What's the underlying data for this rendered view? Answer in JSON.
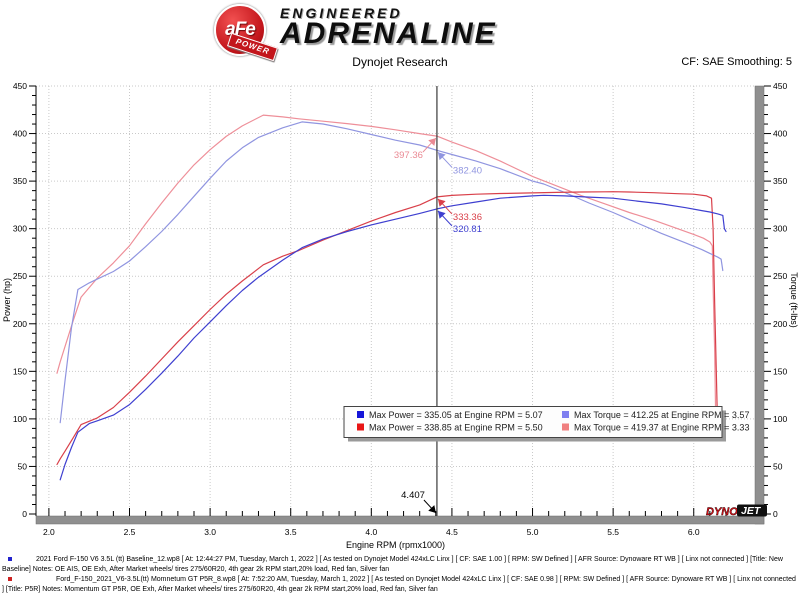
{
  "header": {
    "badge_text": "aFe",
    "badge_sub": "POWER",
    "brand_top": "ENGINEERED",
    "brand_bottom": "ADRENALINE",
    "title": "Dynojet Research",
    "smoothing": "CF: SAE Smoothing: 5"
  },
  "watermark": {
    "dyno": "DYNO",
    "jet": "JET"
  },
  "chart_data": {
    "type": "line",
    "title": "",
    "xlabel": "Engine RPM (rpmx1000)",
    "ylabel_left": "Power (hp)",
    "ylabel_right": "Torque (ft-lbs)",
    "xlim": [
      1.92,
      6.38
    ],
    "ylim": [
      0,
      450
    ],
    "x_ticks": [
      2.0,
      2.5,
      3.0,
      3.5,
      4.0,
      4.5,
      5.0,
      5.5,
      6.0
    ],
    "x_minor_step": 0.1,
    "y_ticks": [
      0,
      50,
      100,
      150,
      200,
      250,
      300,
      350,
      400,
      450
    ],
    "y_minor_step": 10,
    "grid": "dotted at major ticks",
    "legend_position": "bottom center inside",
    "cursor_rpm": 4.407,
    "cursor_label": "4.407",
    "series": [
      {
        "name": "torque_afe_p5r",
        "color": "#ee8f99",
        "axis": "torque",
        "points": [
          [
            2.05,
            148
          ],
          [
            2.07,
            160
          ],
          [
            2.1,
            176
          ],
          [
            2.15,
            203
          ],
          [
            2.2,
            228
          ],
          [
            2.3,
            248
          ],
          [
            2.4,
            264
          ],
          [
            2.5,
            282
          ],
          [
            2.6,
            305
          ],
          [
            2.7,
            327
          ],
          [
            2.8,
            348
          ],
          [
            2.9,
            367
          ],
          [
            3.0,
            383
          ],
          [
            3.1,
            397
          ],
          [
            3.2,
            408
          ],
          [
            3.33,
            419.37
          ],
          [
            3.45,
            417.5
          ],
          [
            3.55,
            415.5
          ],
          [
            3.7,
            413
          ],
          [
            3.85,
            410.5
          ],
          [
            4.0,
            407.5
          ],
          [
            4.15,
            404
          ],
          [
            4.3,
            400
          ],
          [
            4.407,
            397.36
          ],
          [
            4.5,
            391
          ],
          [
            4.65,
            382
          ],
          [
            4.8,
            371
          ],
          [
            5.0,
            355
          ],
          [
            5.15,
            345
          ],
          [
            5.3,
            335
          ],
          [
            5.45,
            326
          ],
          [
            5.6,
            317
          ],
          [
            5.75,
            309
          ],
          [
            5.9,
            300
          ],
          [
            6.0,
            294
          ],
          [
            6.06,
            290
          ],
          [
            6.1,
            286
          ],
          [
            6.115,
            282
          ],
          [
            6.12,
            240
          ],
          [
            6.13,
            170
          ],
          [
            6.135,
            113
          ]
        ]
      },
      {
        "name": "torque_baseline",
        "color": "#9095e0",
        "axis": "torque",
        "points": [
          [
            2.07,
            96
          ],
          [
            2.1,
            140
          ],
          [
            2.14,
            196
          ],
          [
            2.18,
            236
          ],
          [
            2.25,
            243
          ],
          [
            2.3,
            247
          ],
          [
            2.4,
            255
          ],
          [
            2.5,
            266
          ],
          [
            2.6,
            281
          ],
          [
            2.7,
            297
          ],
          [
            2.8,
            315
          ],
          [
            2.9,
            334
          ],
          [
            3.0,
            353
          ],
          [
            3.1,
            371
          ],
          [
            3.2,
            385
          ],
          [
            3.3,
            396
          ],
          [
            3.45,
            406
          ],
          [
            3.57,
            412.25
          ],
          [
            3.7,
            410
          ],
          [
            3.85,
            405
          ],
          [
            4.0,
            399
          ],
          [
            4.15,
            393
          ],
          [
            4.3,
            388
          ],
          [
            4.407,
            382.4
          ],
          [
            4.5,
            378
          ],
          [
            4.65,
            371
          ],
          [
            4.8,
            363
          ],
          [
            5.0,
            350
          ],
          [
            5.07,
            347
          ],
          [
            5.2,
            338
          ],
          [
            5.35,
            327
          ],
          [
            5.5,
            317
          ],
          [
            5.65,
            306
          ],
          [
            5.8,
            295
          ],
          [
            5.95,
            285
          ],
          [
            6.05,
            278
          ],
          [
            6.1,
            274
          ],
          [
            6.15,
            270
          ],
          [
            6.17,
            268
          ],
          [
            6.18,
            256
          ]
        ]
      },
      {
        "name": "power_afe_p5r",
        "color": "#d9404a",
        "axis": "power",
        "points": [
          [
            2.05,
            52
          ],
          [
            2.07,
            58
          ],
          [
            2.1,
            66
          ],
          [
            2.15,
            80
          ],
          [
            2.2,
            94
          ],
          [
            2.3,
            101
          ],
          [
            2.4,
            112
          ],
          [
            2.5,
            128
          ],
          [
            2.6,
            145
          ],
          [
            2.7,
            163
          ],
          [
            2.8,
            181
          ],
          [
            2.9,
            198
          ],
          [
            3.0,
            215
          ],
          [
            3.1,
            231
          ],
          [
            3.2,
            245
          ],
          [
            3.33,
            262
          ],
          [
            3.45,
            271
          ],
          [
            3.55,
            277
          ],
          [
            3.7,
            288
          ],
          [
            3.85,
            298
          ],
          [
            4.0,
            308
          ],
          [
            4.15,
            317
          ],
          [
            4.3,
            325
          ],
          [
            4.407,
            333.36
          ],
          [
            4.5,
            335
          ],
          [
            4.65,
            336.2
          ],
          [
            4.8,
            337
          ],
          [
            5.0,
            337.6
          ],
          [
            5.15,
            338.1
          ],
          [
            5.3,
            338.5
          ],
          [
            5.45,
            338.8
          ],
          [
            5.5,
            338.85
          ],
          [
            5.6,
            338.6
          ],
          [
            5.75,
            337.8
          ],
          [
            5.9,
            336.8
          ],
          [
            6.0,
            336.2
          ],
          [
            6.08,
            334.5
          ],
          [
            6.11,
            332
          ],
          [
            6.12,
            300
          ],
          [
            6.13,
            220
          ],
          [
            6.14,
            150
          ],
          [
            6.145,
            113
          ]
        ]
      },
      {
        "name": "power_baseline",
        "color": "#3e3fd0",
        "axis": "power",
        "points": [
          [
            2.07,
            36
          ],
          [
            2.1,
            52
          ],
          [
            2.14,
            70
          ],
          [
            2.18,
            86
          ],
          [
            2.25,
            95
          ],
          [
            2.3,
            98
          ],
          [
            2.4,
            104
          ],
          [
            2.5,
            115
          ],
          [
            2.6,
            131
          ],
          [
            2.7,
            148
          ],
          [
            2.8,
            166
          ],
          [
            2.9,
            185
          ],
          [
            3.0,
            202
          ],
          [
            3.1,
            219
          ],
          [
            3.2,
            235
          ],
          [
            3.3,
            249
          ],
          [
            3.45,
            267
          ],
          [
            3.57,
            280
          ],
          [
            3.7,
            289
          ],
          [
            3.85,
            297
          ],
          [
            4.0,
            304
          ],
          [
            4.15,
            310
          ],
          [
            4.3,
            316
          ],
          [
            4.407,
            320.81
          ],
          [
            4.5,
            324
          ],
          [
            4.65,
            328
          ],
          [
            4.8,
            332
          ],
          [
            5.0,
            334.5
          ],
          [
            5.07,
            335.05
          ],
          [
            5.2,
            334.5
          ],
          [
            5.35,
            333.2
          ],
          [
            5.5,
            332
          ],
          [
            5.65,
            329
          ],
          [
            5.8,
            326
          ],
          [
            5.95,
            322
          ],
          [
            6.05,
            319
          ],
          [
            6.1,
            317.5
          ],
          [
            6.15,
            315.5
          ],
          [
            6.18,
            314
          ],
          [
            6.19,
            300
          ],
          [
            6.2,
            297
          ]
        ]
      }
    ],
    "legend": [
      {
        "square": "#1515d8",
        "label": "Max Power = 335.05 at Engine RPM = 5.07"
      },
      {
        "square": "#8080f0",
        "label": "Max Torque = 412.25 at Engine RPM = 3.57"
      },
      {
        "square": "#e81515",
        "label": "Max Power = 338.85 at Engine RPM = 5.50"
      },
      {
        "square": "#f08080",
        "label": "Max Torque = 419.37 at Engine RPM = 3.33"
      }
    ],
    "annotations": [
      {
        "text": "397.36",
        "color": "#ea8a94",
        "rpm": 4.407,
        "value": 397.36,
        "side": "left"
      },
      {
        "text": "382.40",
        "color": "#9095e0",
        "rpm": 4.407,
        "value": 382.4,
        "side": "right"
      },
      {
        "text": "333.36",
        "color": "#d9404a",
        "rpm": 4.407,
        "value": 333.36,
        "side": "right"
      },
      {
        "text": "320.81",
        "color": "#3e3fd0",
        "rpm": 4.407,
        "value": 320.81,
        "side": "right"
      },
      {
        "text": "4.407",
        "color": "#000000",
        "rpm": 4.407,
        "value": 0,
        "side": "axis"
      }
    ]
  },
  "footer": {
    "entries": [
      {
        "bullet_color": "#2222cc",
        "text": "2021 Ford F-150 V6 3.5L (tt) Baseline_12.wp8 [ At: 12:44:27 PM, Tuesday, March 1, 2022 ] [ As tested on Dynojet Model 424xLC Linx ] [ CF: SAE 1.00 ] [ RPM: SW Defined ] [ AFR Source: Dynoware RT WB ] [ Linx not connected ] [Title: New Baseline]  Notes: OE AIS, OE Exh, After Market wheels/ tires 275/60R20, 4th gear 2k RPM start,20% load, Red fan, Silver fan"
      },
      {
        "bullet_color": "#cc2222",
        "text": "Ford_F-150_2021_V6-3.5L(tt) Momnetum GT P5R_8.wp8 [ At: 7:52:20 AM, Tuesday, March 1, 2022 ] [ As tested on Dynojet Model 424xLC Linx ] [ CF: SAE 0.98 ] [ RPM: SW Defined ] [ AFR Source: Dynoware RT WB ] [ Linx not connected ] [Title: P5R]  Notes: Momentum GT  P5R, OE Exh, After Market wheels/ tires 275/60R20, 4th gear 2k RPM start,20% load, Red fan, Silver fan"
      }
    ]
  }
}
